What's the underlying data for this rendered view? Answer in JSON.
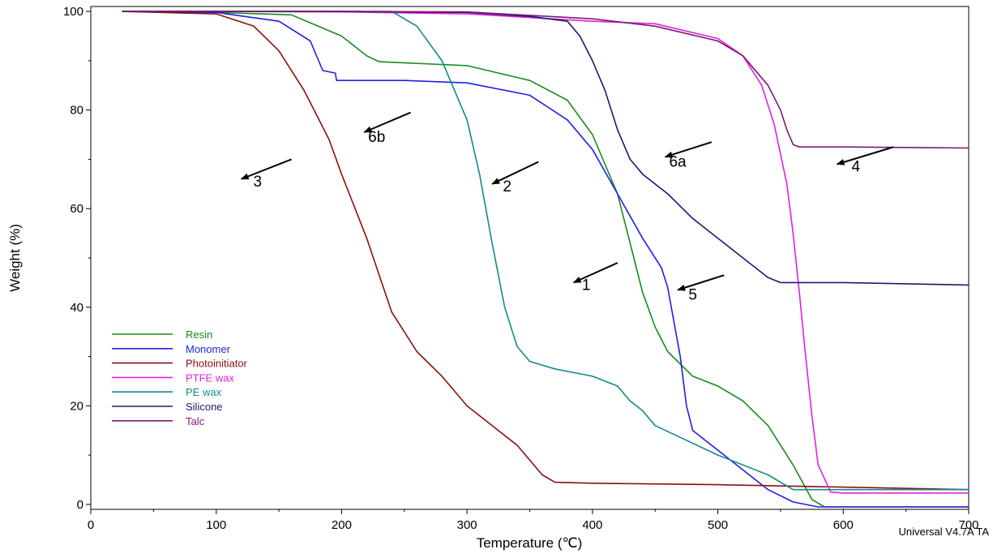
{
  "chart_data": {
    "type": "line",
    "xlabel": "Temperature (℃)",
    "ylabel": "Weight (%)",
    "xlim": [
      0,
      700
    ],
    "ylim": [
      -1,
      101
    ],
    "xticks": [
      0,
      100,
      200,
      300,
      400,
      500,
      600,
      700
    ],
    "yticks": [
      0,
      20,
      40,
      60,
      80,
      100
    ],
    "grid": false,
    "legend_position": "lower-left",
    "footer": "Universal V4.7A TA",
    "series": [
      {
        "name": "Resin",
        "color": "#1a8a1a",
        "x": [
          25,
          100,
          160,
          200,
          220,
          230,
          300,
          350,
          380,
          400,
          420,
          430,
          440,
          450,
          460,
          480,
          500,
          520,
          540,
          560,
          575,
          585,
          600,
          700
        ],
        "y": [
          100,
          99.8,
          99.3,
          95,
          91,
          89.8,
          89,
          86,
          82,
          75,
          63,
          53,
          43,
          36,
          31,
          26,
          24,
          21,
          16,
          8,
          1,
          -0.5,
          -0.5,
          -0.5
        ]
      },
      {
        "name": "Monomer",
        "color": "#1f1fe6",
        "x": [
          25,
          100,
          150,
          175,
          185,
          195,
          196,
          200,
          250,
          300,
          350,
          380,
          400,
          420,
          440,
          455,
          460,
          470,
          475,
          480,
          500,
          520,
          540,
          560,
          580,
          600,
          700
        ],
        "y": [
          100,
          99.8,
          98,
          94,
          88,
          87.5,
          86,
          86,
          86,
          85.5,
          83,
          78,
          72,
          63,
          54,
          48,
          44,
          30,
          20,
          15,
          11,
          7,
          3,
          0.5,
          -0.5,
          -0.5,
          -0.5
        ]
      },
      {
        "name": "Photoinitiator",
        "color": "#8b1010",
        "x": [
          25,
          100,
          130,
          150,
          170,
          190,
          200,
          220,
          240,
          260,
          280,
          300,
          320,
          340,
          360,
          370,
          400,
          500,
          600,
          700
        ],
        "y": [
          100,
          99.5,
          97,
          92,
          84,
          74,
          67,
          54,
          39,
          31,
          26,
          20,
          16,
          12,
          6,
          4.5,
          4.3,
          4,
          3.5,
          3
        ]
      },
      {
        "name": "PTFE wax",
        "color": "#e020e0",
        "x": [
          25,
          100,
          200,
          300,
          400,
          450,
          500,
          520,
          535,
          545,
          555,
          560,
          565,
          570,
          575,
          580,
          590,
          600,
          700
        ],
        "y": [
          100,
          100,
          99.9,
          99.5,
          98,
          97.5,
          94.5,
          91,
          85,
          77,
          65,
          55,
          43,
          30,
          18,
          8,
          2.5,
          2.3,
          2.3
        ]
      },
      {
        "name": "PE wax",
        "color": "#158a8a",
        "x": [
          25,
          100,
          200,
          240,
          260,
          280,
          300,
          310,
          320,
          330,
          340,
          350,
          370,
          400,
          420,
          430,
          440,
          450,
          500,
          540,
          560,
          600,
          700
        ],
        "y": [
          100,
          100,
          100,
          100,
          97,
          90,
          78,
          67,
          53,
          40,
          32,
          29,
          27.5,
          26,
          24,
          21,
          19,
          16,
          10,
          6,
          3,
          3,
          3
        ]
      },
      {
        "name": "Silicone",
        "color": "#1a1a6e",
        "x": [
          25,
          100,
          200,
          300,
          350,
          380,
          390,
          400,
          410,
          420,
          430,
          440,
          460,
          480,
          500,
          520,
          540,
          550,
          570,
          600,
          700
        ],
        "y": [
          100,
          100,
          100,
          99.8,
          99,
          98,
          95,
          90,
          84,
          76,
          70,
          67,
          63,
          58,
          54,
          50,
          46,
          45,
          45,
          45,
          44.5
        ]
      },
      {
        "name": "Talc",
        "color": "#7a1a6e",
        "x": [
          25,
          100,
          200,
          300,
          400,
          450,
          500,
          520,
          540,
          550,
          555,
          560,
          565,
          600,
          700
        ],
        "y": [
          100,
          100,
          100,
          99.9,
          98.5,
          97,
          94,
          91,
          85,
          80,
          76,
          73,
          72.5,
          72.5,
          72.3
        ]
      }
    ],
    "annotations": [
      {
        "label": "1",
        "text_x": 395,
        "text_y": 43.5,
        "arrow_from": [
          420,
          49
        ],
        "arrow_to": [
          385,
          45
        ]
      },
      {
        "label": "2",
        "text_x": 332,
        "text_y": 63.5,
        "arrow_from": [
          357,
          69.5
        ],
        "arrow_to": [
          320,
          65
        ]
      },
      {
        "label": "3",
        "text_x": 133,
        "text_y": 64.5,
        "arrow_from": [
          160,
          70
        ],
        "arrow_to": [
          120,
          66
        ]
      },
      {
        "label": "4",
        "text_x": 610,
        "text_y": 67.5,
        "arrow_from": [
          640,
          72.5
        ],
        "arrow_to": [
          595,
          69
        ]
      },
      {
        "label": "5",
        "text_x": 480,
        "text_y": 41.5,
        "arrow_from": [
          505,
          46.5
        ],
        "arrow_to": [
          468,
          43.5
        ]
      },
      {
        "label": "6a",
        "text_x": 468,
        "text_y": 68.5,
        "arrow_from": [
          495,
          73.5
        ],
        "arrow_to": [
          458,
          70.5
        ]
      },
      {
        "label": "6b",
        "text_x": 228,
        "text_y": 73.5,
        "arrow_from": [
          255,
          79.5
        ],
        "arrow_to": [
          218,
          75.5
        ]
      }
    ]
  }
}
